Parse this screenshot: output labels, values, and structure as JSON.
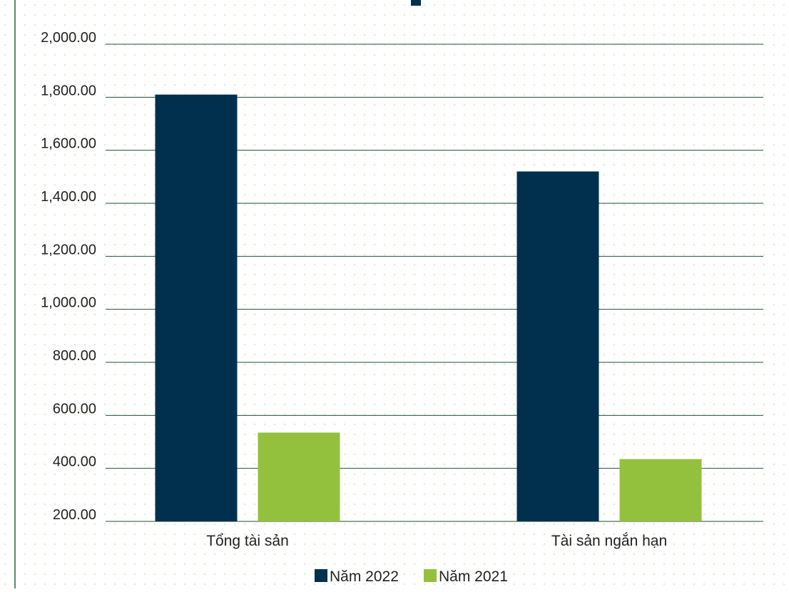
{
  "chart_data": {
    "type": "bar",
    "categories": [
      "Tổng tài sản",
      "Tài sản ngắn hạn"
    ],
    "series": [
      {
        "name": "Năm 2022",
        "color": "#00304d",
        "values": [
          1810,
          1520
        ]
      },
      {
        "name": "Năm 2021",
        "color": "#94c13d",
        "values": [
          535,
          435
        ]
      }
    ],
    "y_ticks": [
      "200.00",
      "400.00",
      "600.00",
      "800.00",
      "1,000.00",
      "1,200.00",
      "1,400.00",
      "1,600.00",
      "1,800.00",
      "2,000.00"
    ],
    "ylim": [
      200,
      2000
    ],
    "grid": true,
    "legend_position": "bottom-center",
    "colors": {
      "gridline": "#1e4f3a",
      "axis_text": "#222222",
      "left_border": "#5e8a6e"
    }
  }
}
